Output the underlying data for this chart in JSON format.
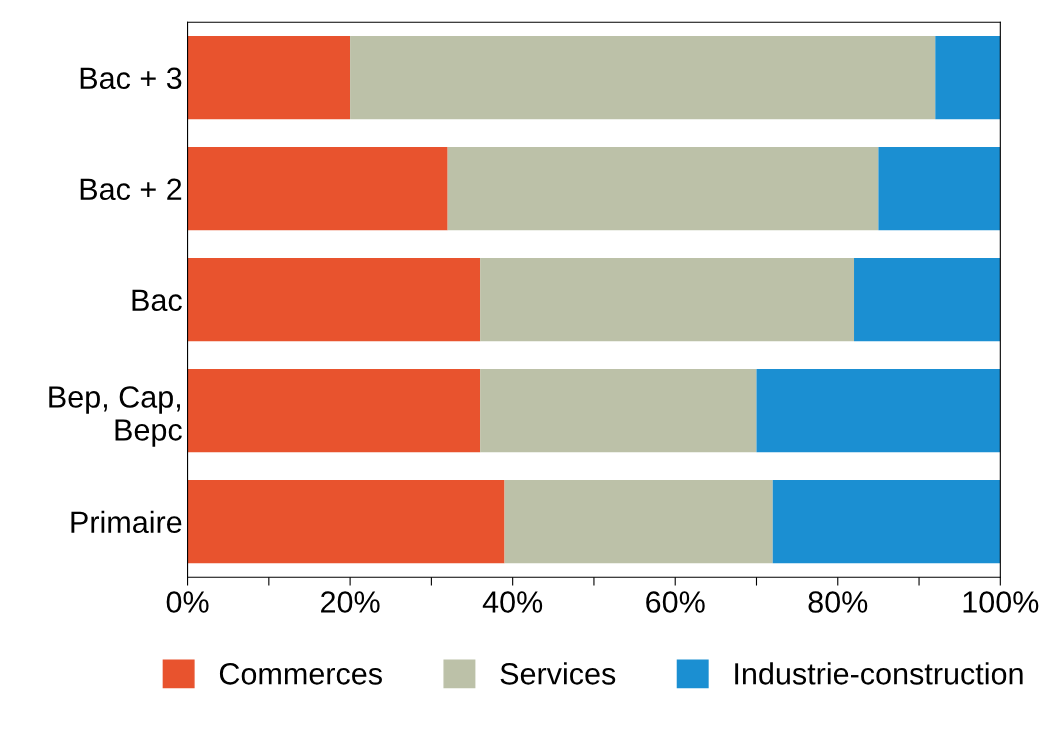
{
  "chart_data": {
    "type": "bar",
    "orientation": "horizontal",
    "stacked": true,
    "categories": [
      "Bac + 3",
      "Bac + 2",
      "Bac",
      "Bep, Cap,\nBepc",
      "Primaire"
    ],
    "series": [
      {
        "name": "Commerces",
        "color": "#e8532e",
        "values": [
          20,
          32,
          36,
          36,
          39
        ]
      },
      {
        "name": "Services",
        "color": "#bcc1a8",
        "values": [
          72,
          53,
          46,
          34,
          33
        ]
      },
      {
        "name": "Industrie-construction",
        "color": "#1b8fd2",
        "values": [
          8,
          15,
          18,
          30,
          28
        ]
      }
    ],
    "xlim": [
      0,
      100
    ],
    "xticks": [
      {
        "value": 0,
        "label": "0%"
      },
      {
        "value": 10,
        "label": null
      },
      {
        "value": 20,
        "label": "20%"
      },
      {
        "value": 30,
        "label": null
      },
      {
        "value": 40,
        "label": "40%"
      },
      {
        "value": 50,
        "label": null
      },
      {
        "value": 60,
        "label": "60%"
      },
      {
        "value": 70,
        "label": null
      },
      {
        "value": 80,
        "label": "80%"
      },
      {
        "value": 90,
        "label": null
      },
      {
        "value": 100,
        "label": "100%"
      }
    ],
    "grid": false,
    "legend": "bottom"
  }
}
